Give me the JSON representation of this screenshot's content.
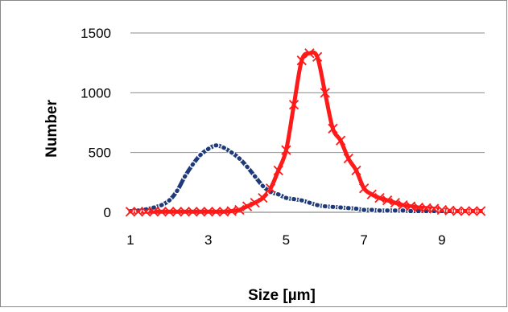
{
  "chart_data": {
    "type": "line",
    "title": "",
    "xlabel": "Size [µm]",
    "ylabel": "Number",
    "xlim": [
      1,
      10.1
    ],
    "ylim": [
      0,
      1500
    ],
    "x_ticks": [
      "1",
      "3",
      "5",
      "7",
      "9"
    ],
    "y_ticks": [
      "0",
      "500",
      "1000",
      "1500"
    ],
    "grid": "horizontal",
    "legend": "none",
    "series": [
      {
        "color": "#1f3a7a",
        "marker": "circle",
        "x": [
          1.0,
          1.2,
          1.4,
          1.6,
          1.8,
          2.0,
          2.2,
          2.4,
          2.6,
          2.8,
          3.0,
          3.2,
          3.4,
          3.6,
          3.8,
          4.0,
          4.2,
          4.4,
          4.6,
          4.8,
          5.0,
          5.2,
          5.4,
          5.6,
          5.8,
          6.0,
          6.2,
          6.4,
          6.6,
          6.8,
          7.0,
          7.2,
          7.4,
          7.6,
          7.8,
          8.0,
          8.2,
          8.4,
          8.6,
          8.8,
          9.0,
          9.2,
          9.4,
          9.6,
          9.8,
          10.0
        ],
        "y": [
          10,
          15,
          25,
          40,
          60,
          100,
          180,
          300,
          400,
          480,
          530,
          560,
          540,
          500,
          450,
          380,
          300,
          220,
          170,
          150,
          120,
          110,
          100,
          80,
          60,
          50,
          45,
          40,
          35,
          30,
          20,
          20,
          15,
          15,
          15,
          15,
          10,
          10,
          10,
          10,
          10,
          10,
          10,
          10,
          10,
          10
        ]
      },
      {
        "color": "#ff1a1a",
        "marker": "x",
        "x": [
          1.0,
          1.2,
          1.4,
          1.6,
          1.8,
          2.0,
          2.2,
          2.4,
          2.6,
          2.8,
          3.0,
          3.2,
          3.4,
          3.6,
          3.8,
          4.0,
          4.2,
          4.4,
          4.6,
          4.8,
          5.0,
          5.2,
          5.4,
          5.6,
          5.8,
          6.0,
          6.2,
          6.4,
          6.6,
          6.8,
          7.0,
          7.2,
          7.4,
          7.6,
          7.8,
          8.0,
          8.2,
          8.4,
          8.6,
          8.8,
          9.0,
          9.2,
          9.4,
          9.6,
          9.8,
          10.0
        ],
        "y": [
          5,
          5,
          5,
          5,
          5,
          5,
          5,
          5,
          5,
          5,
          5,
          5,
          5,
          10,
          20,
          50,
          80,
          120,
          200,
          350,
          520,
          900,
          1270,
          1330,
          1300,
          1000,
          700,
          600,
          450,
          350,
          200,
          150,
          120,
          100,
          80,
          60,
          50,
          40,
          35,
          30,
          20,
          15,
          10,
          10,
          10,
          10
        ]
      }
    ]
  }
}
